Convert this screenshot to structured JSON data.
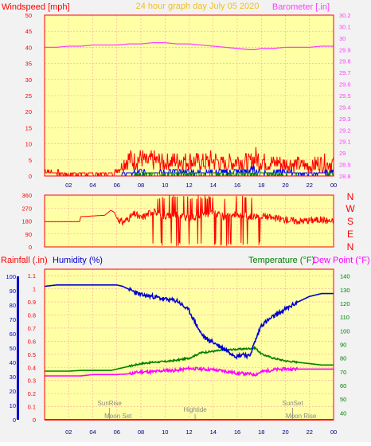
{
  "colors": {
    "background": "#f2f2f2",
    "plot_bg": "#ffffa6",
    "grid": "#ffa0a0",
    "wind": "#ff0000",
    "wind_avg": "#0000ff",
    "wind_low": "#008000",
    "barometer": "#ff40ff",
    "direction": "#ff0000",
    "rain_label": "#ff0000",
    "humidity": "#0000d0",
    "temperature": "#008000",
    "dewpoint": "#ff00ff",
    "title": "#f0c020",
    "events": "#888888"
  },
  "header": {
    "wind_label": "Windspeed [mph]",
    "title": "24 hour graph day   July 05 2020",
    "baro_label": "Barometer [.in]"
  },
  "bottom_header": {
    "rain_label": "Rainfall (.in)",
    "humidity_label": "Humidity (%)",
    "temp_label": "Temperature (°F)",
    "dew_label": "Dew Point (°F)"
  },
  "compass": [
    "N",
    "W",
    "S",
    "E",
    "N"
  ],
  "events": {
    "sunrise": "SunRise",
    "moonset": "Moon Set",
    "hightide": "Hightide",
    "sunset": "SunSet",
    "moonrise": "Moon Rise"
  },
  "chart_data": [
    {
      "type": "line",
      "panel": "wind-barometer",
      "x_ticks": [
        "02",
        "04",
        "06",
        "08",
        "10",
        "12",
        "14",
        "16",
        "18",
        "20",
        "22",
        "00"
      ],
      "xlim": [
        0,
        24
      ],
      "ylim_left": [
        0,
        50
      ],
      "y_ticks_left": [
        0,
        5,
        10,
        15,
        20,
        25,
        30,
        35,
        40,
        45,
        50
      ],
      "ylim_right": [
        28.8,
        30.2
      ],
      "y_ticks_right": [
        "28.8",
        "28.9",
        "29",
        "29.1",
        "29.2",
        "29.3",
        "29.4",
        "29.5",
        "29.6",
        "29.7",
        "29.8",
        "29.9",
        "30",
        "30.1",
        "30.2"
      ],
      "barometer": {
        "x": [
          0,
          1,
          2,
          3,
          4,
          5,
          6,
          7,
          8,
          9,
          10,
          11,
          12,
          13,
          14,
          15,
          16,
          17,
          17.5,
          18,
          19,
          20,
          21,
          22,
          23,
          24
        ],
        "values": [
          29.92,
          29.92,
          29.93,
          29.93,
          29.94,
          29.94,
          29.94,
          29.95,
          29.95,
          29.96,
          29.96,
          29.95,
          29.95,
          29.94,
          29.93,
          29.92,
          29.91,
          29.9,
          29.9,
          29.91,
          29.91,
          29.92,
          29.92,
          29.92,
          29.93,
          29.93
        ]
      },
      "wind_gust_max": {
        "x": [
          0,
          0.5,
          1,
          1.5,
          2,
          3,
          4,
          5,
          5.8,
          6,
          6.5,
          7,
          7.5,
          8,
          8.5,
          9,
          10,
          11,
          12,
          13,
          14,
          15,
          16,
          17,
          17.5,
          18,
          19,
          20,
          21,
          22,
          23,
          24
        ],
        "values": [
          3,
          2,
          2,
          1,
          1,
          1,
          1,
          1,
          2,
          3,
          6,
          9,
          8,
          9,
          7,
          8,
          7,
          8,
          8,
          7,
          8,
          6,
          8,
          7,
          9,
          8,
          7,
          6,
          6,
          5,
          7,
          6
        ]
      },
      "wind_average_max": {
        "x": [
          0,
          6,
          6.5,
          8,
          10,
          12,
          14,
          16,
          17.5,
          18,
          20,
          22,
          24
        ],
        "values": [
          0,
          0,
          1,
          2,
          2,
          2,
          2,
          2,
          3,
          2,
          2,
          1,
          2
        ]
      },
      "wind_low_max": {
        "x": [
          0,
          6.5,
          8,
          10,
          12,
          14,
          16,
          18,
          20,
          22,
          24
        ],
        "values": [
          0,
          0,
          1,
          1,
          1,
          1,
          1,
          1,
          1,
          0,
          1
        ]
      }
    },
    {
      "type": "line",
      "panel": "wind-direction",
      "y_ticks": [
        0,
        90,
        180,
        270,
        360
      ],
      "ylim": [
        0,
        360
      ],
      "xlim": [
        0,
        24
      ],
      "x": [
        0,
        1,
        2,
        2.9,
        3,
        4,
        5,
        5.5,
        5.8,
        6,
        6.5,
        7,
        7.5,
        8,
        9,
        10,
        11,
        12,
        13,
        14,
        15,
        16,
        17,
        18,
        19,
        20,
        21,
        22,
        23,
        24
      ],
      "values": [
        175,
        175,
        175,
        175,
        210,
        215,
        220,
        255,
        240,
        200,
        170,
        200,
        230,
        200,
        250,
        210,
        230,
        200,
        220,
        240,
        200,
        230,
        210,
        220,
        200,
        190,
        180,
        185,
        190,
        175
      ],
      "note": "values show the mid line; between hours 9 and 18 the direction swings widely between about 0 and 360"
    },
    {
      "type": "line",
      "panel": "rain-humidity-temperature",
      "xlim": [
        0,
        24
      ],
      "y_ticks_rain": [
        0,
        0.1,
        0.2,
        0.3,
        0.4,
        0.5,
        0.6,
        0.7,
        0.8,
        0.9,
        1,
        1.1
      ],
      "ylim_rain": [
        0,
        1.15
      ],
      "y_ticks_humidity": [
        0,
        10,
        20,
        30,
        40,
        50,
        60,
        70,
        80,
        90,
        100
      ],
      "ylim_humidity": [
        0,
        105
      ],
      "y_ticks_temp": [
        40,
        50,
        60,
        70,
        80,
        90,
        100,
        110,
        120,
        130,
        140
      ],
      "ylim_temp": [
        35,
        145
      ],
      "rainfall": {
        "x": [
          0,
          24
        ],
        "values": [
          0,
          0
        ]
      },
      "humidity": {
        "x": [
          0,
          1,
          2,
          3,
          4,
          5,
          6,
          6.5,
          7,
          8,
          9,
          10,
          11,
          12,
          12.5,
          13,
          13.5,
          14,
          15,
          16,
          16.5,
          17,
          17.5,
          18,
          19,
          20,
          21,
          22,
          23,
          24
        ],
        "values": [
          93,
          94,
          94,
          94,
          94,
          94,
          94,
          93,
          91,
          87,
          86,
          84,
          83,
          76,
          68,
          60,
          56,
          54,
          49,
          44,
          46,
          44,
          55,
          66,
          72,
          77,
          82,
          86,
          88,
          88
        ]
      },
      "temperature": {
        "x": [
          0,
          1,
          2,
          3,
          4,
          5,
          5.5,
          6,
          7,
          8,
          9,
          10,
          11,
          12,
          12.5,
          13,
          14,
          15,
          16,
          17,
          17.5,
          18,
          19,
          20,
          21,
          22,
          23,
          24
        ],
        "values": [
          70.5,
          70.5,
          70.5,
          71,
          71,
          71,
          71,
          72,
          74,
          76,
          77,
          77.5,
          78.5,
          80,
          82,
          84,
          85,
          86,
          86.5,
          87,
          87.5,
          83,
          80,
          78,
          77,
          76,
          75,
          75
        ]
      },
      "dew_point": {
        "x": [
          0,
          1,
          2,
          3,
          4,
          5,
          6,
          7,
          8,
          9,
          10,
          11,
          12,
          13,
          14,
          15,
          16,
          17,
          17.5,
          18,
          19,
          20,
          21,
          22,
          23,
          24
        ],
        "values": [
          67,
          67,
          67,
          67,
          68,
          68,
          68,
          68.5,
          70,
          70,
          71,
          71,
          72.5,
          72,
          71.5,
          70.5,
          69,
          68.5,
          68,
          70,
          71.5,
          72,
          72,
          72,
          72,
          72
        ]
      },
      "events_hours": {
        "sunrise": 5.4,
        "moonset": 6.1,
        "hightide": 12.5,
        "sunset": 20.6,
        "moonrise": 21.3
      }
    }
  ]
}
